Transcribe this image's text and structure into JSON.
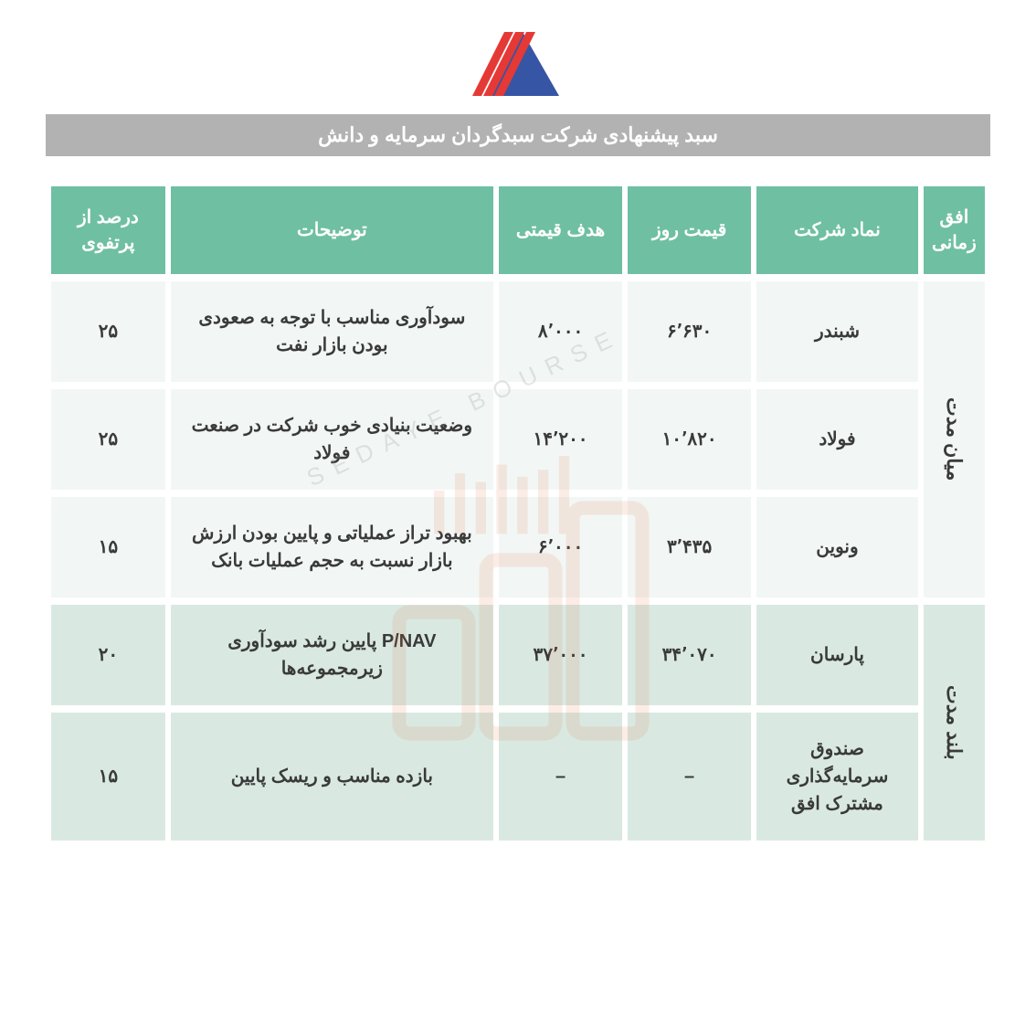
{
  "title": "سبد پیشنهادی شرکت سبدگردان سرمایه و دانش",
  "watermark_text": "SEDAYE BOURSE",
  "logo": {
    "red": "#e53935",
    "blue": "#3655a5"
  },
  "columns": {
    "timeframe": "افق زمانی",
    "symbol": "نماد شرکت",
    "day_price": "قیمت روز",
    "target_price": "هدف قیمتی",
    "description": "توضیحات",
    "percent": "درصد از پرتفوی"
  },
  "groups": [
    {
      "timeframe": "میان مدت",
      "shade": "row-light",
      "rows": [
        {
          "symbol": "شبندر",
          "day_price": "۶٬۶۳۰",
          "target_price": "۸٬۰۰۰",
          "description": "سودآوری مناسب با توجه به صعودی بودن بازار نفت",
          "percent": "۲۵"
        },
        {
          "symbol": "فولاد",
          "day_price": "۱۰٬۸۲۰",
          "target_price": "۱۴٬۲۰۰",
          "description": "وضعیت بنیادی خوب شرکت در صنعت فولاد",
          "percent": "۲۵"
        },
        {
          "symbol": "ونوین",
          "day_price": "۳٬۴۳۵",
          "target_price": "۶٬۰۰۰",
          "description": "بهبود تراز عملیاتی و پایین بودن ارزش بازار نسبت به حجم عملیات بانک",
          "percent": "۱۵"
        }
      ]
    },
    {
      "timeframe": "بلند مدت",
      "shade": "row-dark",
      "rows": [
        {
          "symbol": "پارسان",
          "day_price": "۳۴٬۰۷۰",
          "target_price": "۳۷٬۰۰۰",
          "description": "P/NAV پایین رشد سودآوری زیرمجموعه‌ها",
          "percent": "۲۰"
        },
        {
          "symbol": "صندوق سرمایه‌گذاری مشترک افق",
          "day_price": "–",
          "target_price": "–",
          "description": "بازده مناسب و ریسک پایین",
          "percent": "۱۵"
        }
      ]
    }
  ],
  "styling": {
    "header_bg": "#6fbfa3",
    "header_text": "#ffffff",
    "title_bg": "#b2b2b2",
    "title_text": "#ffffff",
    "row_light": "#f2f7f5",
    "row_dark": "#d9e9e2",
    "body_text": "#3a3a3a",
    "header_fontsize": 20,
    "cell_fontsize": 20,
    "title_fontsize": 22
  }
}
